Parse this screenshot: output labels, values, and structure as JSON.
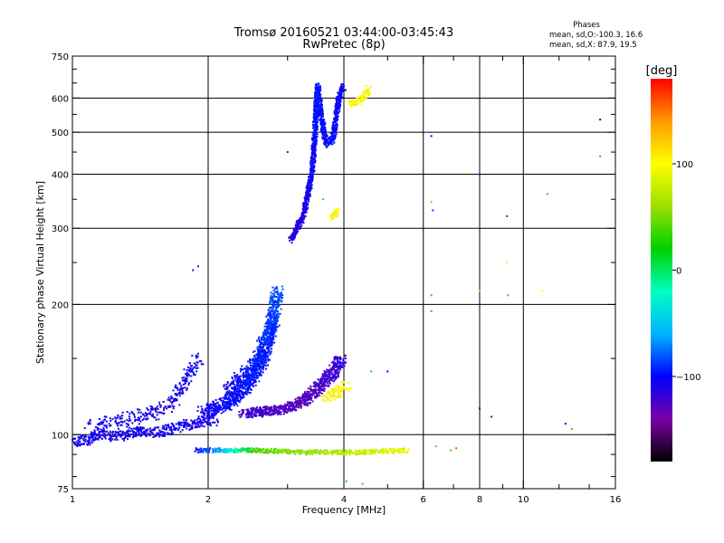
{
  "chart_data": {
    "type": "scatter",
    "title": "Tromsø 20160521 03:44:00-03:45:43",
    "subtitle": "RwPretec (8p)",
    "xlabel": "Frequency [MHz]",
    "ylabel": "Stationary phase Virtual Height [km]",
    "x_scale": "log",
    "y_scale": "log",
    "xlim": [
      1,
      16
    ],
    "ylim": [
      75,
      750
    ],
    "x_ticks": [
      1,
      2,
      4,
      6,
      8,
      10,
      16
    ],
    "x_minor_ticks": [
      3,
      5,
      7,
      9,
      12,
      14
    ],
    "y_ticks": [
      75,
      100,
      200,
      300,
      400,
      500,
      600,
      750
    ],
    "y_minor_ticks": [
      80,
      90,
      150,
      250,
      350,
      450,
      550,
      650,
      700
    ],
    "grid": true,
    "phases_legend": {
      "title": "Phases",
      "lines": [
        "mean, sd,O:-100.3, 16.6",
        "mean, sd,X:  87.9, 19.5"
      ]
    },
    "colorbar": {
      "label": "[deg]",
      "range": [
        -180,
        180
      ],
      "ticks": [
        100,
        0,
        -100
      ],
      "tick_labels": [
        "100",
        "0",
        "−100"
      ],
      "stops": [
        "#000000",
        "#7a00a6",
        "#0000ff",
        "#00b4ff",
        "#00ffc0",
        "#00d000",
        "#9be000",
        "#ffff00",
        "#ff9b00",
        "#ff0000"
      ]
    },
    "series": [
      {
        "trace": [
          [
            1.0,
            96,
            -110
          ],
          [
            1.08,
            97,
            -105
          ],
          [
            1.15,
            100,
            -108
          ],
          [
            1.25,
            99,
            -110
          ],
          [
            1.4,
            102,
            -105
          ],
          [
            1.55,
            101,
            -110
          ],
          [
            1.7,
            104,
            -103
          ],
          [
            1.85,
            106,
            -110
          ],
          [
            1.95,
            107,
            -105
          ],
          [
            2.05,
            108,
            -108
          ]
        ],
        "n": 5,
        "jx": 0.04,
        "jy": 0.025
      },
      {
        "trace": [
          [
            1.1,
            104,
            -110
          ],
          [
            1.3,
            108,
            -105
          ],
          [
            1.5,
            112,
            -108
          ],
          [
            1.65,
            116,
            -115
          ]
        ],
        "n": 3,
        "jx": 0.05,
        "jy": 0.035
      },
      {
        "trace": [
          [
            1.65,
            116,
            -105
          ],
          [
            1.78,
            132,
            -110
          ],
          [
            1.85,
            145,
            -100
          ],
          [
            1.92,
            150,
            -105
          ]
        ],
        "n": 3,
        "jx": 0.02,
        "jy": 0.04
      },
      {
        "trace": [
          [
            1.95,
            112,
            -110
          ],
          [
            2.2,
            118,
            -100
          ],
          [
            2.45,
            130,
            -98
          ],
          [
            2.65,
            150,
            -95
          ],
          [
            2.75,
            175,
            -90
          ],
          [
            2.85,
            215,
            -80
          ]
        ],
        "n": 9,
        "jx": 0.03,
        "jy": 0.035
      },
      {
        "trace": [
          [
            2.2,
            125,
            -105
          ],
          [
            2.55,
            145,
            -95
          ],
          [
            2.8,
            185,
            -88
          ]
        ],
        "n": 5,
        "jx": 0.03,
        "jy": 0.04
      },
      {
        "trace": [
          [
            2.4,
            112,
            -120
          ],
          [
            2.9,
            114,
            -125
          ],
          [
            3.2,
            118,
            -130
          ],
          [
            3.5,
            128,
            -125
          ],
          [
            3.8,
            140,
            -120
          ],
          [
            3.95,
            150,
            -115
          ]
        ],
        "n": 9,
        "jx": 0.03,
        "jy": 0.025
      },
      {
        "trace": [
          [
            3.05,
            282,
            -115
          ],
          [
            3.25,
            320,
            -110
          ],
          [
            3.4,
            400,
            -105
          ],
          [
            3.45,
            500,
            -100
          ],
          [
            3.5,
            640,
            -95
          ],
          [
            3.55,
            560,
            -100
          ],
          [
            3.65,
            470,
            -100
          ],
          [
            3.78,
            480,
            -100
          ],
          [
            3.9,
            600,
            -102
          ],
          [
            4.0,
            640,
            -105
          ]
        ],
        "n": 7,
        "jx": 0.012,
        "jy": 0.02
      },
      {
        "trace": [
          [
            3.65,
            122,
            100
          ],
          [
            3.85,
            125,
            100
          ],
          [
            4.05,
            130,
            98
          ]
        ],
        "n": 5,
        "jx": 0.03,
        "jy": 0.025
      },
      {
        "trace": [
          [
            3.75,
            318,
            100
          ],
          [
            3.9,
            330,
            100
          ]
        ],
        "n": 4,
        "jx": 0.012,
        "jy": 0.02
      },
      {
        "trace": [
          [
            4.15,
            580,
            100
          ],
          [
            4.35,
            590,
            100
          ],
          [
            4.55,
            630,
            100
          ]
        ],
        "n": 5,
        "jx": 0.015,
        "jy": 0.02
      },
      {
        "trace": [
          [
            1.9,
            92,
            -110
          ],
          [
            2.6,
            92,
            40
          ],
          [
            3.3,
            91,
            60
          ],
          [
            4.5,
            91,
            80
          ],
          [
            5.5,
            92,
            90
          ]
        ],
        "n": 5,
        "jx": 0.03,
        "jy": 0.012
      }
    ],
    "scatter_points": [
      [
        1.85,
        240,
        -120
      ],
      [
        1.9,
        245,
        -110
      ],
      [
        3.0,
        450,
        -125
      ],
      [
        3.6,
        350,
        10
      ],
      [
        4.05,
        78,
        20
      ],
      [
        4.4,
        77,
        150
      ],
      [
        4.6,
        140,
        10
      ],
      [
        5.0,
        140,
        -100
      ],
      [
        6.25,
        490,
        -100
      ],
      [
        6.25,
        345,
        140
      ],
      [
        6.3,
        330,
        -90
      ],
      [
        6.25,
        210,
        30
      ],
      [
        6.25,
        193,
        20
      ],
      [
        8.0,
        400,
        -90
      ],
      [
        8.0,
        215,
        120
      ],
      [
        8.0,
        122,
        30
      ],
      [
        8.0,
        115,
        -110
      ],
      [
        8.5,
        110,
        -130
      ],
      [
        9.2,
        320,
        -140
      ],
      [
        9.2,
        250,
        110
      ],
      [
        9.25,
        210,
        30
      ],
      [
        11.0,
        215,
        100
      ],
      [
        11.3,
        360,
        150
      ],
      [
        12.4,
        106,
        -110
      ],
      [
        12.8,
        103,
        30
      ],
      [
        14.8,
        535,
        -170
      ],
      [
        14.8,
        440,
        20
      ],
      [
        6.4,
        94,
        150
      ],
      [
        7.1,
        93,
        160
      ],
      [
        4.9,
        93,
        110
      ],
      [
        6.9,
        92,
        40
      ]
    ]
  }
}
